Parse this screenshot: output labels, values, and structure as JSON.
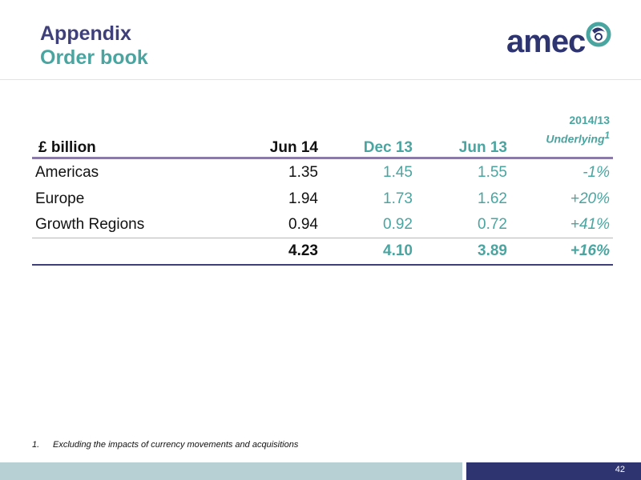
{
  "header": {
    "title": "Appendix",
    "subtitle": "Order book",
    "logo_text": "amec"
  },
  "table": {
    "columns": {
      "label": "£ billion",
      "jun14": "Jun 14",
      "dec13": "Dec 13",
      "jun13": "Jun 13",
      "underlying_year": "2014/13",
      "underlying_label": "Underlying",
      "underlying_note": "1"
    },
    "rows": [
      {
        "label": "Americas",
        "jun14": "1.35",
        "dec13": "1.45",
        "jun13": "1.55",
        "underlying": "-1%"
      },
      {
        "label": "Europe",
        "jun14": "1.94",
        "dec13": "1.73",
        "jun13": "1.62",
        "underlying": "+20%"
      },
      {
        "label": "Growth Regions",
        "jun14": "0.94",
        "dec13": "0.92",
        "jun13": "0.72",
        "underlying": "+41%"
      }
    ],
    "total": {
      "label": "",
      "jun14": "4.23",
      "dec13": "4.10",
      "jun13": "3.89",
      "underlying": "+16%"
    }
  },
  "footnote": {
    "number": "1.",
    "text": "Excluding the impacts of currency movements and acquisitions"
  },
  "footer": {
    "page_number": "42"
  },
  "colors": {
    "title": "#3f3f7a",
    "accent_teal": "#4aa5a1",
    "navy": "#2e3470",
    "rule_purple": "#8a7aa8"
  }
}
